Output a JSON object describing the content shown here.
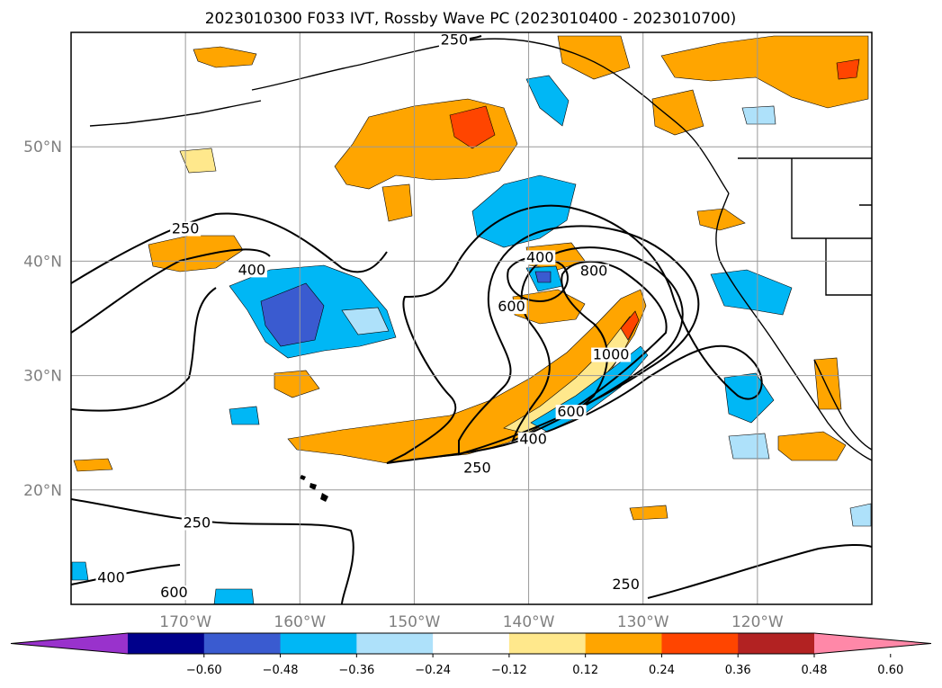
{
  "title": "2023010300 F033 IVT, Rossby Wave PC (2023010400 - 2023010700)",
  "map": {
    "lon_range": [
      -180,
      -110
    ],
    "lat_range": [
      10,
      60
    ],
    "lon_ticks": [
      {
        "value": -170,
        "label": "170°W"
      },
      {
        "value": -160,
        "label": "160°W"
      },
      {
        "value": -150,
        "label": "150°W"
      },
      {
        "value": -140,
        "label": "140°W"
      },
      {
        "value": -130,
        "label": "130°W"
      },
      {
        "value": -120,
        "label": "120°W"
      }
    ],
    "lat_ticks": [
      {
        "value": 20,
        "label": "20°N"
      },
      {
        "value": 30,
        "label": "30°N"
      },
      {
        "value": 40,
        "label": "40°N"
      },
      {
        "value": 50,
        "label": "50°N"
      }
    ],
    "grid": true,
    "ivt_contour_labels": [
      {
        "text": "250",
        "lon": -146.5,
        "lat": 59.0
      },
      {
        "text": "250",
        "lon": -170.0,
        "lat": 42.5
      },
      {
        "text": "400",
        "lon": -164.2,
        "lat": 38.9
      },
      {
        "text": "400",
        "lon": -139.0,
        "lat": 40.0
      },
      {
        "text": "600",
        "lon": -141.5,
        "lat": 35.7
      },
      {
        "text": "800",
        "lon": -134.3,
        "lat": 38.8
      },
      {
        "text": "1000",
        "lon": -132.8,
        "lat": 31.5
      },
      {
        "text": "600",
        "lon": -136.3,
        "lat": 26.5
      },
      {
        "text": "400",
        "lon": -139.6,
        "lat": 24.1
      },
      {
        "text": "250",
        "lon": -144.5,
        "lat": 21.6
      },
      {
        "text": "250",
        "lon": -169.0,
        "lat": 16.8
      },
      {
        "text": "400",
        "lon": -176.5,
        "lat": 12.0
      },
      {
        "text": "600",
        "lon": -171.0,
        "lat": 10.7
      },
      {
        "text": "250",
        "lon": -131.5,
        "lat": 11.4
      }
    ]
  },
  "colorbar": {
    "levels": [
      -0.72,
      -0.6,
      -0.48,
      -0.36,
      -0.24,
      -0.12,
      0.12,
      0.24,
      0.36,
      0.48,
      0.6,
      0.72
    ],
    "colors": [
      "#9932cc",
      "#00008b",
      "#3a5bd0",
      "#00b7f5",
      "#aee1fa",
      "#ffffff",
      "#ffe88c",
      "#ffa500",
      "#ff4500",
      "#b22222",
      "#ff88a8"
    ],
    "tick_labels": [
      "−0.60",
      "−0.48",
      "−0.36",
      "−0.24",
      "−0.12",
      "0.12",
      "0.24",
      "0.36",
      "0.48",
      "0.60"
    ]
  }
}
